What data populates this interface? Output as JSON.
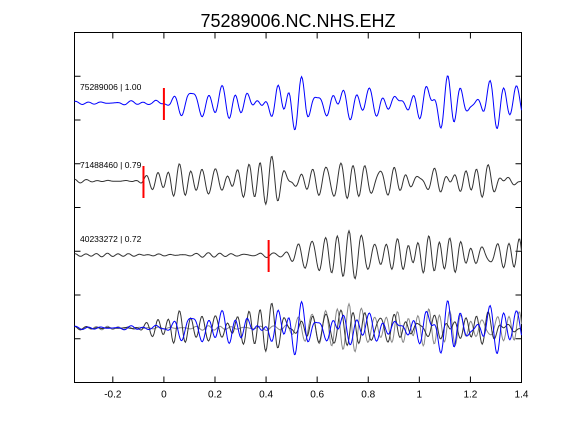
{
  "chart_data": {
    "type": "line",
    "title": "75289006.NC.NHS.EHZ",
    "xlim": [
      -0.35,
      1.4
    ],
    "x_ticks": [
      "-0.2",
      "0",
      "0.2",
      "0.4",
      "0.6",
      "0.8",
      "1",
      "1.2",
      "1.4"
    ],
    "x_tick_values": [
      -0.2,
      0,
      0.2,
      0.4,
      0.6,
      0.8,
      1,
      1.2,
      1.4
    ],
    "grid": false,
    "y_tick_count": 7,
    "traces": [
      {
        "label": "75289006 | 1.00",
        "color": "#0000ff",
        "pick_time": 0.0,
        "pick_color": "#ff0000",
        "seed": 11,
        "amplitude": 1.0
      },
      {
        "label": "71488460 | 0.79",
        "color": "#333333",
        "pick_time": -0.08,
        "pick_color": "#ff0000",
        "seed": 23,
        "amplitude": 0.9
      },
      {
        "label": "40233272 | 0.72",
        "color": "#333333",
        "pick_time": 0.41,
        "pick_color": "#ff0000",
        "seed": 37,
        "amplitude": 0.85
      }
    ],
    "overlay": {
      "series_colors": [
        "#0000ff",
        "#333333",
        "#888888"
      ]
    }
  }
}
